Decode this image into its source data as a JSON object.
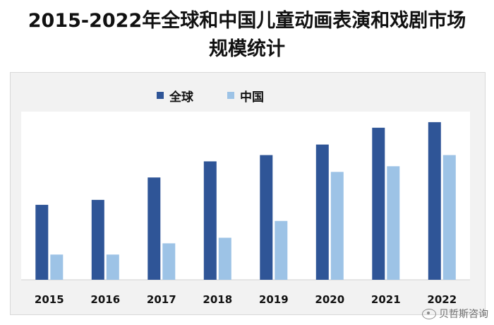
{
  "chart_data": {
    "type": "bar",
    "title_line1": "2015-2022年全球和中国儿童动画表演和戏剧市场",
    "title_line2": "规模统计",
    "categories": [
      "2015",
      "2016",
      "2017",
      "2018",
      "2019",
      "2020",
      "2021",
      "2022"
    ],
    "series": [
      {
        "name": "全球",
        "color": "#2f5597",
        "values": [
          107,
          114,
          146,
          169,
          178,
          193,
          217,
          225
        ]
      },
      {
        "name": "中国",
        "color": "#9dc3e6",
        "values": [
          36,
          36,
          52,
          60,
          84,
          154,
          162,
          178
        ]
      }
    ],
    "ylim": [
      0,
      240
    ],
    "xlabel": "",
    "ylabel": "",
    "legend_position": "top-center",
    "grid": false
  },
  "watermark": {
    "text": "贝哲斯咨询",
    "icon": "weibo-icon"
  }
}
